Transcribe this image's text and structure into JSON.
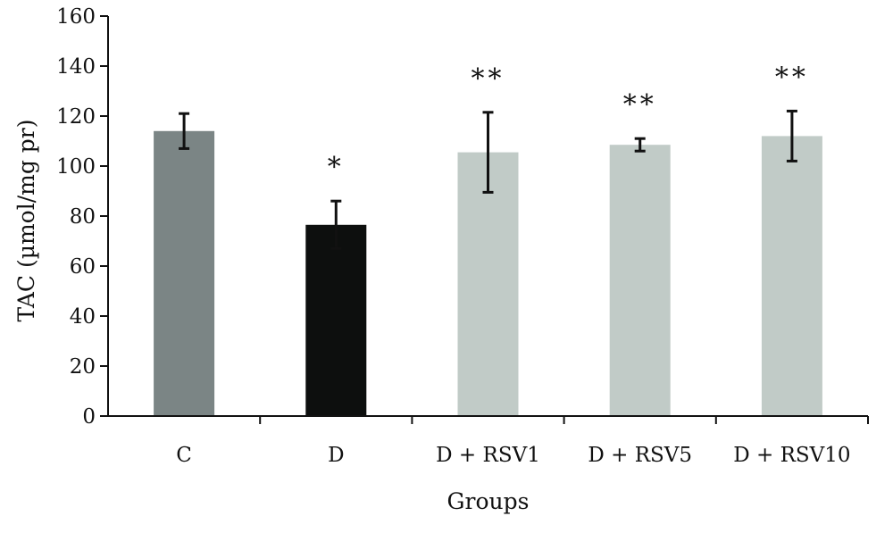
{
  "chart_data": {
    "type": "bar",
    "categories": [
      "C",
      "D",
      "D + RSV1",
      "D + RSV5",
      "D + RSV10"
    ],
    "values": [
      114,
      76.5,
      105.5,
      108.5,
      112
    ],
    "error": [
      7,
      9.5,
      16,
      2.5,
      10
    ],
    "significance": [
      "",
      "*",
      "**",
      "**",
      "**"
    ],
    "bar_colors": [
      "#7b8585",
      "#0d0f0e",
      "#c1cbc7",
      "#c1cbc7",
      "#c1cbc7"
    ],
    "ylim": [
      0,
      160
    ],
    "yticks": [
      0,
      20,
      40,
      60,
      80,
      100,
      120,
      140,
      160
    ],
    "xlabel": "Groups",
    "ylabel": "TAC (µmol/mg pr)",
    "grid": false
  }
}
